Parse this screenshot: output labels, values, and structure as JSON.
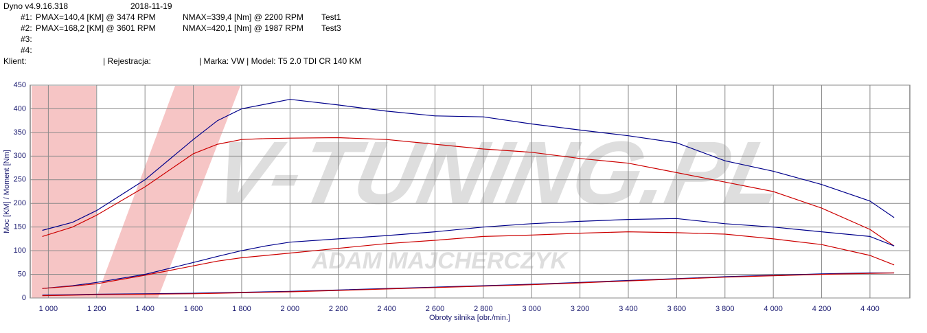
{
  "header": {
    "app": "Dyno v4.9.16.318",
    "date": "2018-11-19",
    "runs": [
      {
        "id": "#1:",
        "pmax": "PMAX=140,4 [KM] @ 3474 RPM",
        "nmax": "NMAX=339,4 [Nm] @ 2200 RPM",
        "test": "Test1"
      },
      {
        "id": "#2:",
        "pmax": "PMAX=168,2 [KM] @ 3601 RPM",
        "nmax": "NMAX=420,1 [Nm] @ 1987 RPM",
        "test": "Test3"
      },
      {
        "id": "#3:"
      },
      {
        "id": "#4:"
      }
    ],
    "client": {
      "label": "Klient:",
      "registration": "| Rejestracja:",
      "make_model": "| Marka: VW | Model: T5 2.0 TDI CR 140 KM"
    }
  },
  "chart_data": {
    "type": "line",
    "x_label": "Obroty silnika [obr./min.]",
    "y_label": "Moc [KM] / Moment [Nm]",
    "watermark": [
      "V-TUNING.PL",
      "ADAM MAJCHERCZYK"
    ],
    "xlim": [
      925,
      4565
    ],
    "ylim": [
      0,
      450
    ],
    "grid": true,
    "xticks": [
      {
        "value": 1000,
        "label": "1 000"
      },
      {
        "value": 1200,
        "label": "1 200"
      },
      {
        "value": 1400,
        "label": "1 400"
      },
      {
        "value": 1600,
        "label": "1 600"
      },
      {
        "value": 1800,
        "label": "1 800"
      },
      {
        "value": 2000,
        "label": "2 000"
      },
      {
        "value": 2200,
        "label": "2 200"
      },
      {
        "value": 2400,
        "label": "2 400"
      },
      {
        "value": 2600,
        "label": "2 600"
      },
      {
        "value": 2800,
        "label": "2 800"
      },
      {
        "value": 3000,
        "label": "3 000"
      },
      {
        "value": 3200,
        "label": "3 200"
      },
      {
        "value": 3400,
        "label": "3 400"
      },
      {
        "value": 3600,
        "label": "3 600"
      },
      {
        "value": 3800,
        "label": "3 800"
      },
      {
        "value": 4000,
        "label": "4 000"
      },
      {
        "value": 4200,
        "label": "4 200"
      },
      {
        "value": 4400,
        "label": "4 400"
      }
    ],
    "yticks": [
      0,
      50,
      100,
      150,
      200,
      250,
      300,
      350,
      400,
      450
    ],
    "x": [
      975,
      1100,
      1200,
      1400,
      1600,
      1700,
      1800,
      1900,
      2000,
      2200,
      2400,
      2600,
      2800,
      3000,
      3200,
      3400,
      3600,
      3800,
      4000,
      4200,
      4400,
      4500
    ],
    "series": [
      {
        "color": "#00008b",
        "values": [
          143,
          160,
          185,
          250,
          335,
          375,
          400,
          410,
          420,
          408,
          395,
          385,
          383,
          368,
          355,
          343,
          328,
          290,
          268,
          240,
          205,
          170
        ]
      },
      {
        "color": "#cc0000",
        "values": [
          130,
          150,
          175,
          235,
          305,
          325,
          335,
          337,
          338,
          339,
          335,
          325,
          315,
          308,
          295,
          285,
          265,
          245,
          225,
          190,
          145,
          110
        ]
      },
      {
        "color": "#00008b",
        "values": [
          20,
          26,
          33,
          50,
          75,
          88,
          100,
          110,
          118,
          125,
          132,
          140,
          150,
          157,
          162,
          166,
          168,
          157,
          150,
          140,
          130,
          110
        ]
      },
      {
        "color": "#cc0000",
        "values": [
          20,
          25,
          30,
          48,
          68,
          78,
          85,
          90,
          95,
          105,
          115,
          122,
          130,
          133,
          137,
          140,
          138,
          135,
          125,
          113,
          90,
          70
        ]
      },
      {
        "color": "#00008b",
        "values": [
          6,
          7,
          8,
          9,
          10,
          11,
          12,
          13,
          14,
          17,
          20,
          23,
          26,
          29,
          33,
          37,
          41,
          45,
          48,
          51,
          53,
          53
        ]
      },
      {
        "color": "#cc0000",
        "values": [
          5,
          6,
          7,
          8,
          9,
          10,
          11,
          12,
          13,
          16,
          19,
          22,
          25,
          28,
          32,
          36,
          40,
          44,
          47,
          50,
          52,
          53
        ]
      }
    ]
  }
}
